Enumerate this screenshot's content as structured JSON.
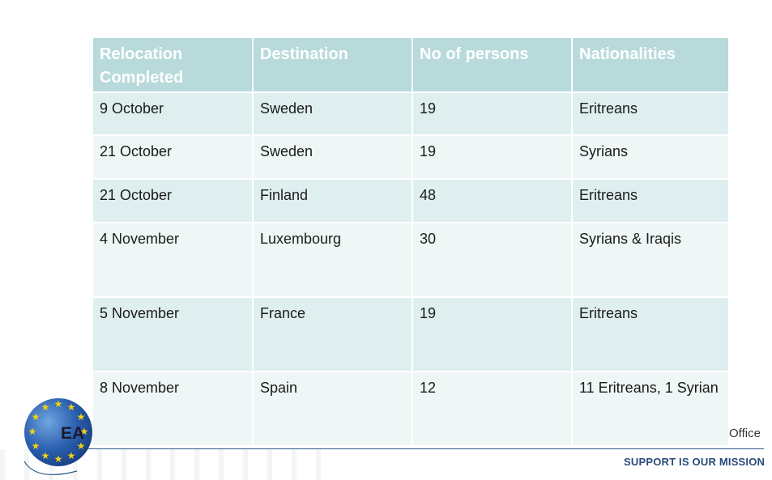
{
  "table": {
    "headers": [
      "Relocation Completed",
      "Destination",
      "No of persons",
      "Nationalities"
    ],
    "rows": [
      [
        "9 October",
        "Sweden",
        "19",
        "Eritreans"
      ],
      [
        "21 October",
        "Sweden",
        "19",
        "Syrians"
      ],
      [
        "21 October",
        "Finland",
        "48",
        "Eritreans"
      ],
      [
        "4 November",
        "Luxembourg",
        "30",
        "Syrians & Iraqis"
      ],
      [
        "5 November",
        "France",
        "19",
        "Eritreans"
      ],
      [
        "8 November",
        "Spain",
        "12",
        "11 Eritreans, 1 Syrian"
      ]
    ]
  },
  "footer": {
    "logo_text": "EA",
    "office_text": "Office",
    "slogan": "SUPPORT IS OUR MISSION"
  },
  "colors": {
    "header_bg": "#b8dadb",
    "row_dark": "#dfeeef",
    "row_light": "#eef6f6",
    "brand_blue": "#2a4b7c",
    "star_yellow": "#f5d20b"
  },
  "icons": {
    "logo": "eu-stars-globe-icon"
  }
}
